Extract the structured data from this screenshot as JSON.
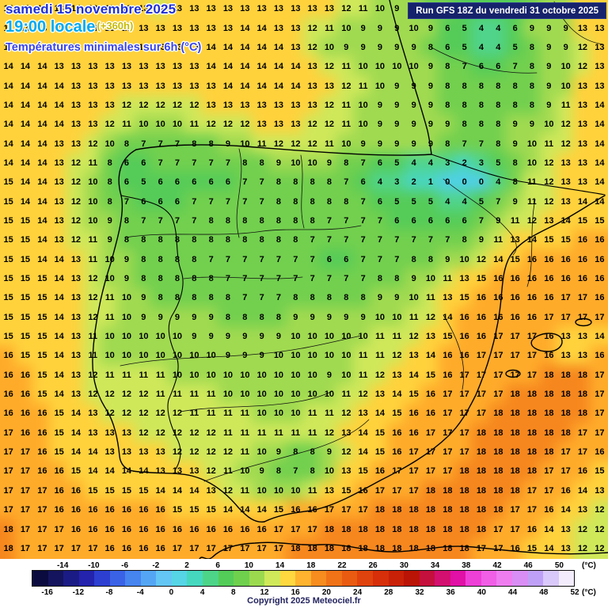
{
  "header": {
    "date_line": "samedi 15 novembre 2025",
    "time_label": "19:00 locale",
    "offset_label": "(+360h)",
    "subtitle": "Températures minimales sur 6h (°C)",
    "run_info": "Run GFS 18Z du vendredi 31 octobre 2025"
  },
  "footer": {
    "copyright": "Copyright 2025 Meteociel.fr",
    "unit_label": "(°C)"
  },
  "colorbar": {
    "min": -18,
    "max": 52,
    "step": 2,
    "top_ticks": [
      -14,
      -10,
      -6,
      -2,
      2,
      6,
      10,
      14,
      18,
      22,
      26,
      30,
      34,
      38,
      42,
      46,
      50
    ],
    "bottom_ticks": [
      -16,
      -12,
      -8,
      -4,
      0,
      4,
      8,
      12,
      16,
      20,
      24,
      28,
      32,
      36,
      40,
      44,
      48,
      52
    ],
    "segment_colors": [
      "#0b0b40",
      "#14145e",
      "#1b1b85",
      "#2323ad",
      "#2d3fd0",
      "#3a62e6",
      "#4684f0",
      "#54a6f4",
      "#63c6f4",
      "#55d5e6",
      "#46d8bf",
      "#4dd489",
      "#53cc58",
      "#6fd04e",
      "#9bda4f",
      "#cfe95a",
      "#ffd83f",
      "#ffb32e",
      "#f78c1f",
      "#f07317",
      "#e95b11",
      "#e0430d",
      "#d62f0a",
      "#c92108",
      "#ba1406",
      "#c4103c",
      "#d31070",
      "#e110a6",
      "#ee3fd6",
      "#f05fe6",
      "#ef7df0",
      "#d98ef5",
      "#bfa0f7",
      "#d9c8fa",
      "#f2ecfd"
    ]
  },
  "chart_data": {
    "type": "heatmap",
    "title": "Températures minimales sur 6h (°C)",
    "units": "°C",
    "cols": 36,
    "rows": 29,
    "value_colors": [
      {
        "max": 0,
        "color": "#4fd0e8"
      },
      {
        "max": 2,
        "color": "#49d6c0"
      },
      {
        "max": 4,
        "color": "#50d48c"
      },
      {
        "max": 6,
        "color": "#55cc58"
      },
      {
        "max": 8,
        "color": "#72d04e"
      },
      {
        "max": 10,
        "color": "#a0da50"
      },
      {
        "max": 12,
        "color": "#cfe85a"
      },
      {
        "max": 15,
        "color": "#ffd23c"
      },
      {
        "max": 17,
        "color": "#ffab2a"
      },
      {
        "max": 99,
        "color": "#f6871e"
      }
    ],
    "grid": [
      "14 13 13 13 14 13 13 13 13 12 13 13 13 13 13 13 13 13 13 13 12 11 10 9 9 8 7 6 5 5 6 8 9 9 13 13",
      "14 14 13 13 13 13 13 13 13 13 13 13 13 13 14 14 13 13 12 11 10 9 9 9 10 9 6 5 4 4 6 9 9 9 13 13",
      "14 14 14 13 13 13 13 13 13 13 13 13 14 14 14 14 14 13 12 10 9 9 9 9 9 8 6 5 4 4 5 8 9 9 12 13",
      "14 14 14 13 13 13 13 13 13 13 13 13 14 14 14 14 14 14 13 12 11 10 10 10 10 9 8 7 6 6 7 8 9 10 12 13",
      "14 14 14 14 13 13 13 13 13 13 13 13 13 14 14 14 14 14 13 13 12 11 10 9 9 9 8 8 8 8 8 8 9 10 13 13",
      "14 14 14 14 13 13 13 12 12 12 12 12 13 13 13 13 13 13 13 12 11 10 9 9 9 9 8 8 8 8 8 8 9 11 13 14",
      "14 14 14 14 13 13 12 11 10 10 10 11 12 12 12 13 13 13 12 12 11 10 9 9 9 9 9 8 8 8 9 9 10 12 13 14",
      "14 14 14 13 13 12 10 8 7 7 7 8 8 9 10 11 12 12 12 11 10 9 9 9 9 9 8 7 7 8 9 10 11 12 13 14",
      "14 14 14 13 12 11 8 6 6 7 7 7 7 7 8 8 9 10 10 9 8 7 6 5 4 4 3 2 3 5 8 10 12 13 13 14",
      "15 14 14 13 12 10 8 6 5 6 6 6 6 6 7 7 8 8 8 8 7 6 4 3 2 1 0 0 0 4 8 11 12 13 13 14",
      "15 14 14 13 12 10 8 7 6 6 6 7 7 7 7 7 8 8 8 8 8 7 6 5 5 5 4 4 5 7 9 11 12 13 14 14",
      "15 15 14 13 12 10 9 8 7 7 7 7 8 8 8 8 8 8 8 7 7 7 7 6 6 6 6 6 7 9 11 12 13 14 15 15",
      "15 15 14 13 12 11 9 8 8 8 8 8 8 8 8 8 8 8 7 7 7 7 7 7 7 7 7 8 9 11 13 14 15 15 16 16",
      "15 15 14 14 13 11 10 9 8 8 8 8 7 7 7 7 7 7 7 6 6 7 7 7 8 8 9 10 12 14 15 16 16 16 16 16",
      "15 15 15 14 13 12 10 9 8 8 8 8 8 7 7 7 7 7 7 7 7 7 8 8 9 10 11 13 15 16 16 16 16 16 16 16",
      "15 15 15 14 13 12 11 10 9 8 8 8 8 8 7 7 7 8 8 8 8 8 9 9 10 11 13 15 16 16 16 16 16 17 17 16",
      "15 15 15 14 13 12 11 10 9 9 9 9 9 8 8 8 8 9 9 9 9 9 10 10 11 12 14 16 16 16 16 16 17 17 17 17",
      "15 15 15 14 13 11 10 10 10 10 10 9 9 9 9 9 9 10 10 10 10 10 11 11 12 13 15 16 16 17 17 17 16 13 13 14",
      "16 15 15 14 13 11 10 10 10 10 10 10 10 9 9 9 10 10 10 10 10 11 11 12 13 14 16 16 17 17 17 17 16 13 13 16",
      "16 16 15 14 13 12 11 11 11 11 10 10 10 10 10 10 10 10 10 9 10 11 12 13 14 15 16 17 17 17 17 17 18 18 18 17",
      "16 16 15 14 13 12 12 12 12 11 11 11 11 10 10 10 10 10 10 10 11 12 13 14 15 16 17 17 17 17 18 18 18 18 18 17",
      "16 16 16 15 14 13 12 12 12 12 12 11 11 11 11 10 10 10 11 11 12 13 14 15 16 16 17 17 17 18 18 18 18 18 18 17",
      "17 16 16 15 14 13 13 13 12 12 12 12 12 11 11 11 11 11 11 12 13 14 15 16 16 17 17 17 18 18 18 18 18 18 17 17",
      "17 17 16 15 14 14 13 13 13 13 12 12 12 12 11 10 9 8 8 9 12 14 15 16 17 17 17 17 18 18 18 18 18 17 17 16",
      "17 17 16 16 15 14 14 14 14 13 13 13 12 11 10 9 8 7 8 10 13 15 16 17 17 17 17 18 18 18 18 18 17 17 16 15",
      "17 17 17 16 16 15 15 15 15 14 14 14 13 12 11 10 10 10 11 13 15 16 17 17 17 18 18 18 18 18 18 17 17 16 14 13",
      "17 17 17 16 16 16 16 16 16 16 15 15 15 14 14 14 15 16 16 17 17 17 18 18 18 18 18 18 18 18 17 17 16 14 13 12",
      "18 17 17 17 16 16 16 16 16 16 16 16 16 16 16 16 17 17 17 18 18 18 18 18 18 18 18 18 18 17 17 16 14 13 12 12",
      "18 17 17 17 17 17 16 16 16 16 17 17 17 17 17 17 17 18 18 18 18 18 18 18 18 18 18 18 17 17 16 15 14 13 12 12"
    ]
  }
}
